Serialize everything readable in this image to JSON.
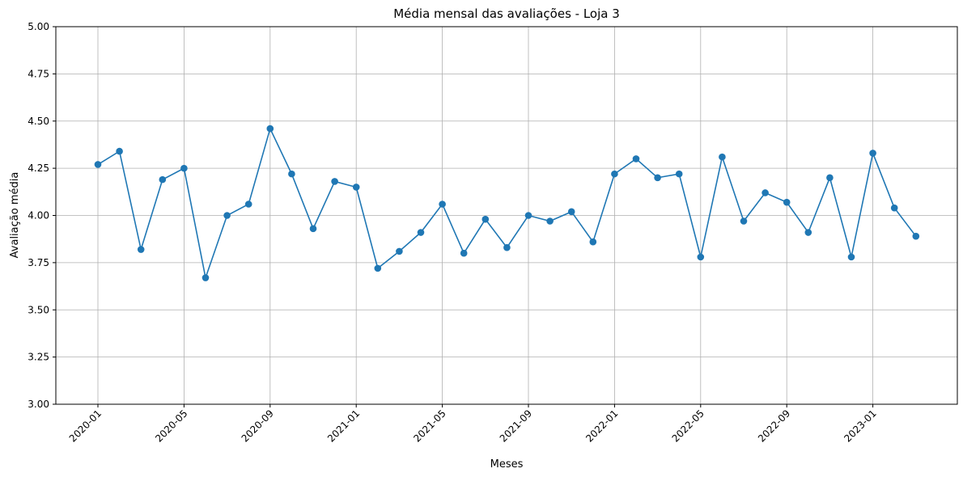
{
  "chart_data": {
    "type": "line",
    "title": "Média mensal das avaliações - Loja 3",
    "xlabel": "Meses",
    "ylabel": "Avaliação média",
    "ylim": [
      3.0,
      5.0
    ],
    "yticks": [
      "3.00",
      "3.25",
      "3.50",
      "3.75",
      "4.00",
      "4.25",
      "4.50",
      "4.75",
      "5.00"
    ],
    "xticks": [
      "2020-01",
      "2020-05",
      "2020-09",
      "2021-01",
      "2021-05",
      "2021-09",
      "2022-01",
      "2022-05",
      "2022-09",
      "2023-01"
    ],
    "grid": true,
    "line_color": "#1f77b4",
    "marker": "circle",
    "series": [
      {
        "x": [
          "2020-01",
          "2020-02",
          "2020-03",
          "2020-04",
          "2020-05",
          "2020-06",
          "2020-07",
          "2020-08",
          "2020-09",
          "2020-10",
          "2020-11",
          "2020-12",
          "2021-01",
          "2021-02",
          "2021-03",
          "2021-04",
          "2021-05",
          "2021-06",
          "2021-07",
          "2021-08",
          "2021-09",
          "2021-10",
          "2021-11",
          "2021-12",
          "2022-01",
          "2022-02",
          "2022-03",
          "2022-04",
          "2022-05",
          "2022-06",
          "2022-07",
          "2022-08",
          "2022-09",
          "2022-10",
          "2022-11",
          "2022-12",
          "2023-01",
          "2023-02",
          "2023-03"
        ],
        "values": [
          4.27,
          4.34,
          3.82,
          4.19,
          4.25,
          3.67,
          4.0,
          4.06,
          4.46,
          4.22,
          3.93,
          4.18,
          4.15,
          3.72,
          3.81,
          3.91,
          4.06,
          3.8,
          3.98,
          3.83,
          4.0,
          3.97,
          4.02,
          3.86,
          4.22,
          4.3,
          4.2,
          4.22,
          3.78,
          4.31,
          3.97,
          4.12,
          4.07,
          3.91,
          4.2,
          3.78,
          4.33,
          4.04,
          3.89
        ]
      }
    ]
  }
}
